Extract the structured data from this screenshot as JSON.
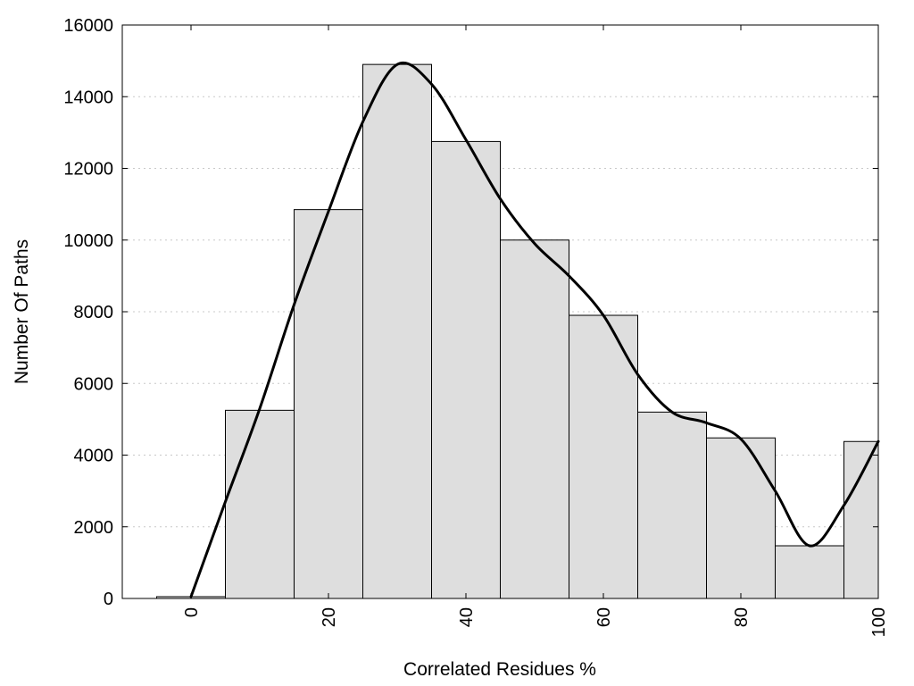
{
  "chart_data": {
    "type": "bar",
    "title": "",
    "xlabel": "Correlated Residues %",
    "ylabel": "Number Of Paths",
    "xlim": [
      -10,
      100
    ],
    "ylim": [
      0,
      16000
    ],
    "xticks": [
      0,
      20,
      40,
      60,
      80,
      100
    ],
    "yticks": [
      0,
      2000,
      4000,
      6000,
      8000,
      10000,
      12000,
      14000,
      16000
    ],
    "grid": "y-dotted",
    "bin_width": 10,
    "bins": [
      {
        "center": 0,
        "value": 50
      },
      {
        "center": 10,
        "value": 5250
      },
      {
        "center": 20,
        "value": 10850
      },
      {
        "center": 30,
        "value": 14900
      },
      {
        "center": 40,
        "value": 12750
      },
      {
        "center": 50,
        "value": 10000
      },
      {
        "center": 60,
        "value": 7900
      },
      {
        "center": 70,
        "value": 5200
      },
      {
        "center": 80,
        "value": 4480
      },
      {
        "center": 90,
        "value": 1470
      },
      {
        "center": 100,
        "value": 4380
      }
    ],
    "curve": {
      "type": "smooth-line",
      "points": [
        [
          0,
          50
        ],
        [
          5,
          2700
        ],
        [
          10,
          5300
        ],
        [
          15,
          8200
        ],
        [
          20,
          10800
        ],
        [
          25,
          13300
        ],
        [
          30,
          14900
        ],
        [
          35,
          14350
        ],
        [
          40,
          12800
        ],
        [
          45,
          11150
        ],
        [
          50,
          9900
        ],
        [
          55,
          9000
        ],
        [
          60,
          7900
        ],
        [
          65,
          6250
        ],
        [
          70,
          5200
        ],
        [
          75,
          4900
        ],
        [
          80,
          4450
        ],
        [
          85,
          3000
        ],
        [
          90,
          1470
        ],
        [
          95,
          2600
        ],
        [
          100,
          4380
        ]
      ]
    },
    "colors": {
      "bar_fill": "#dedede",
      "bar_stroke": "#000000",
      "curve": "#000000",
      "grid": "#c8c8c8"
    }
  }
}
